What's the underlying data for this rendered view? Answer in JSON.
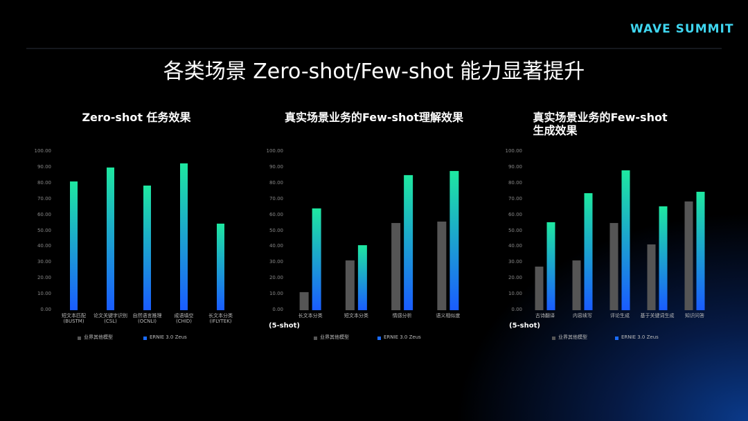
{
  "logo": "WAVE SUMMIT",
  "title": "各类场景 Zero-shot/Few-shot 能力显著提升",
  "chart_data": [
    {
      "type": "bar",
      "title": "Zero-shot 任务效果",
      "categories": [
        "短文本匹配\n(BUSTM)",
        "论文关键字识别\n(CSL)",
        "自然语言推理\n(OCNLI)",
        "成语填空\n(CHID)",
        "长文本分类\n(IFLYTEK)"
      ],
      "series": [
        {
          "name": "业界其他模型",
          "color": "#555555",
          "values": [
            null,
            null,
            null,
            null,
            null
          ]
        },
        {
          "name": "ERNIE 3.0 Zeus",
          "color": "#1a6cff",
          "values": [
            81.2,
            90,
            78.6,
            92.6,
            54.6
          ]
        }
      ],
      "ylim": [
        0,
        100
      ],
      "yticks": [
        {
          "value": 0,
          "label": "0.00"
        },
        {
          "value": 10,
          "label": "10.00"
        },
        {
          "value": 20,
          "label": "20.00"
        },
        {
          "value": 30,
          "label": "30.00"
        },
        {
          "value": 40,
          "label": "40.00"
        },
        {
          "value": 50,
          "label": "50.00"
        },
        {
          "value": 60,
          "label": "60.00"
        },
        {
          "value": 70,
          "label": "70.00"
        },
        {
          "value": 80,
          "label": "80.00"
        },
        {
          "value": 90,
          "label": "90.00"
        },
        {
          "value": 100,
          "label": "100.00"
        }
      ],
      "grid": false
    },
    {
      "type": "bar",
      "title": "真实场景业务的Few-shot理解效果",
      "annotation": "(5-shot)",
      "categories": [
        "长文本分类",
        "短文本分类",
        "情感分析",
        "语义相似度"
      ],
      "series": [
        {
          "name": "业界其他模型",
          "color": "#555555",
          "values": [
            11.4,
            31.4,
            55,
            55.9
          ]
        },
        {
          "name": "ERNIE 3.0 Zeus",
          "color": "#1a6cff",
          "values": [
            64.2,
            41,
            85.2,
            87.8
          ]
        }
      ],
      "ylim": [
        0,
        100
      ],
      "yticks": [
        {
          "value": 0,
          "label": "0.00"
        },
        {
          "value": 10,
          "label": "10.00"
        },
        {
          "value": 20,
          "label": "20.00"
        },
        {
          "value": 30,
          "label": "30.00"
        },
        {
          "value": 40,
          "label": "40.00"
        },
        {
          "value": 50,
          "label": "50.00"
        },
        {
          "value": 60,
          "label": "60.00"
        },
        {
          "value": 70,
          "label": "70.00"
        },
        {
          "value": 80,
          "label": "80.00"
        },
        {
          "value": 90,
          "label": "90.00"
        },
        {
          "value": 100,
          "label": "100.00"
        }
      ],
      "grid": false
    },
    {
      "type": "bar",
      "title": "真实场景业务的Few-shot生成效果",
      "annotation": "(5-shot)",
      "categories": [
        "古诗翻译",
        "内容续写",
        "评论生成",
        "基于关键词生成",
        "知识问答"
      ],
      "series": [
        {
          "name": "业界其他模型",
          "color": "#555555",
          "values": [
            27.5,
            31.4,
            55,
            41.5,
            68.6
          ]
        },
        {
          "name": "ERNIE 3.0 Zeus",
          "color": "#1a6cff",
          "values": [
            55.5,
            73.8,
            88.2,
            65.5,
            74.7
          ]
        }
      ],
      "ylim": [
        0,
        100
      ],
      "yticks": [
        {
          "value": 0,
          "label": "0.00"
        },
        {
          "value": 10,
          "label": "10.00"
        },
        {
          "value": 20,
          "label": "20.00"
        },
        {
          "value": 30,
          "label": "30.00"
        },
        {
          "value": 40,
          "label": "40.00"
        },
        {
          "value": 50,
          "label": "50.00"
        },
        {
          "value": 60,
          "label": "60.00"
        },
        {
          "value": 70,
          "label": "70.00"
        },
        {
          "value": 80,
          "label": "80.00"
        },
        {
          "value": 90,
          "label": "90.00"
        },
        {
          "value": 100,
          "label": "100.00"
        }
      ],
      "grid": false
    }
  ]
}
